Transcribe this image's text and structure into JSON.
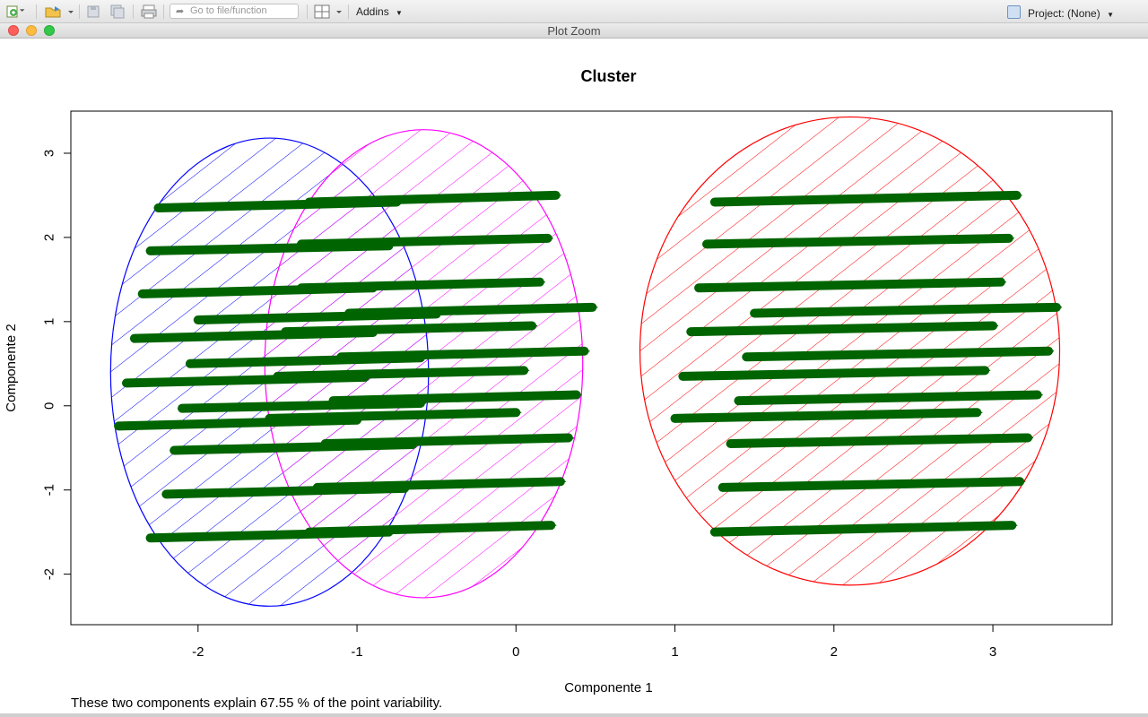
{
  "toolbar": {
    "goto_placeholder": "Go to file/function",
    "addins_label": "Addins",
    "project_label": "Project: (None)"
  },
  "window": {
    "title": "Plot Zoom"
  },
  "footer_text": "These two components explain 67.55 % of the point variability.",
  "chart_data": {
    "type": "scatter",
    "title": "Cluster",
    "xlabel": "Componente 1",
    "ylabel": "Componente 2",
    "xlim": [
      -2.8,
      3.75
    ],
    "ylim": [
      -2.6,
      3.5
    ],
    "x_ticks": [
      -2,
      -1,
      0,
      1,
      2,
      3
    ],
    "y_ticks": [
      -2,
      -1,
      0,
      1,
      2,
      3
    ],
    "grid": false,
    "point_color": "#006400",
    "clusters": [
      {
        "color": "#0000ff",
        "center": [
          -1.55,
          0.4
        ],
        "radii": [
          1.0,
          2.78
        ],
        "rows": [
          {
            "x0": -2.25,
            "x1": -0.75,
            "y0": 2.35,
            "y1": 2.42
          },
          {
            "x0": -2.3,
            "x1": -0.8,
            "y0": 1.84,
            "y1": 1.9
          },
          {
            "x0": -2.35,
            "x1": -0.9,
            "y0": 1.33,
            "y1": 1.4
          },
          {
            "x0": -2.0,
            "x1": -0.5,
            "y0": 1.02,
            "y1": 1.09
          },
          {
            "x0": -2.4,
            "x1": -0.9,
            "y0": 0.8,
            "y1": 0.87
          },
          {
            "x0": -2.05,
            "x1": -0.6,
            "y0": 0.5,
            "y1": 0.57
          },
          {
            "x0": -2.45,
            "x1": -0.95,
            "y0": 0.27,
            "y1": 0.34
          },
          {
            "x0": -2.1,
            "x1": -0.6,
            "y0": -0.03,
            "y1": 0.03
          },
          {
            "x0": -2.5,
            "x1": -1.0,
            "y0": -0.24,
            "y1": -0.17
          },
          {
            "x0": -2.15,
            "x1": -0.65,
            "y0": -0.53,
            "y1": -0.46
          },
          {
            "x0": -2.2,
            "x1": -0.7,
            "y0": -1.05,
            "y1": -0.98
          },
          {
            "x0": -2.3,
            "x1": -0.8,
            "y0": -1.57,
            "y1": -1.5
          }
        ]
      },
      {
        "color": "#ff00ff",
        "center": [
          -0.58,
          0.5
        ],
        "radii": [
          1.0,
          2.78
        ],
        "rows": [
          {
            "x0": -1.3,
            "x1": 0.25,
            "y0": 2.42,
            "y1": 2.5
          },
          {
            "x0": -1.35,
            "x1": 0.2,
            "y0": 1.92,
            "y1": 1.99
          },
          {
            "x0": -1.35,
            "x1": 0.15,
            "y0": 1.4,
            "y1": 1.47
          },
          {
            "x0": -1.05,
            "x1": 0.48,
            "y0": 1.1,
            "y1": 1.17
          },
          {
            "x0": -1.45,
            "x1": 0.1,
            "y0": 0.88,
            "y1": 0.95
          },
          {
            "x0": -1.1,
            "x1": 0.43,
            "y0": 0.58,
            "y1": 0.65
          },
          {
            "x0": -1.5,
            "x1": 0.05,
            "y0": 0.35,
            "y1": 0.42
          },
          {
            "x0": -1.15,
            "x1": 0.38,
            "y0": 0.06,
            "y1": 0.13
          },
          {
            "x0": -1.55,
            "x1": 0.0,
            "y0": -0.15,
            "y1": -0.08
          },
          {
            "x0": -1.2,
            "x1": 0.33,
            "y0": -0.45,
            "y1": -0.38
          },
          {
            "x0": -1.25,
            "x1": 0.28,
            "y0": -0.97,
            "y1": -0.9
          },
          {
            "x0": -1.3,
            "x1": 0.22,
            "y0": -1.5,
            "y1": -1.42
          }
        ]
      },
      {
        "color": "#ff0000",
        "center": [
          2.1,
          0.65
        ],
        "radii": [
          1.32,
          2.78
        ],
        "rows": [
          {
            "x0": 1.25,
            "x1": 3.15,
            "y0": 2.42,
            "y1": 2.5
          },
          {
            "x0": 1.2,
            "x1": 3.1,
            "y0": 1.92,
            "y1": 1.99
          },
          {
            "x0": 1.15,
            "x1": 3.05,
            "y0": 1.4,
            "y1": 1.47
          },
          {
            "x0": 1.5,
            "x1": 3.4,
            "y0": 1.1,
            "y1": 1.17
          },
          {
            "x0": 1.1,
            "x1": 3.0,
            "y0": 0.88,
            "y1": 0.95
          },
          {
            "x0": 1.45,
            "x1": 3.35,
            "y0": 0.58,
            "y1": 0.65
          },
          {
            "x0": 1.05,
            "x1": 2.95,
            "y0": 0.35,
            "y1": 0.42
          },
          {
            "x0": 1.4,
            "x1": 3.28,
            "y0": 0.06,
            "y1": 0.13
          },
          {
            "x0": 1.0,
            "x1": 2.9,
            "y0": -0.15,
            "y1": -0.08
          },
          {
            "x0": 1.35,
            "x1": 3.22,
            "y0": -0.45,
            "y1": -0.38
          },
          {
            "x0": 1.3,
            "x1": 3.17,
            "y0": -0.97,
            "y1": -0.9
          },
          {
            "x0": 1.25,
            "x1": 3.12,
            "y0": -1.5,
            "y1": -1.42
          }
        ]
      }
    ]
  }
}
